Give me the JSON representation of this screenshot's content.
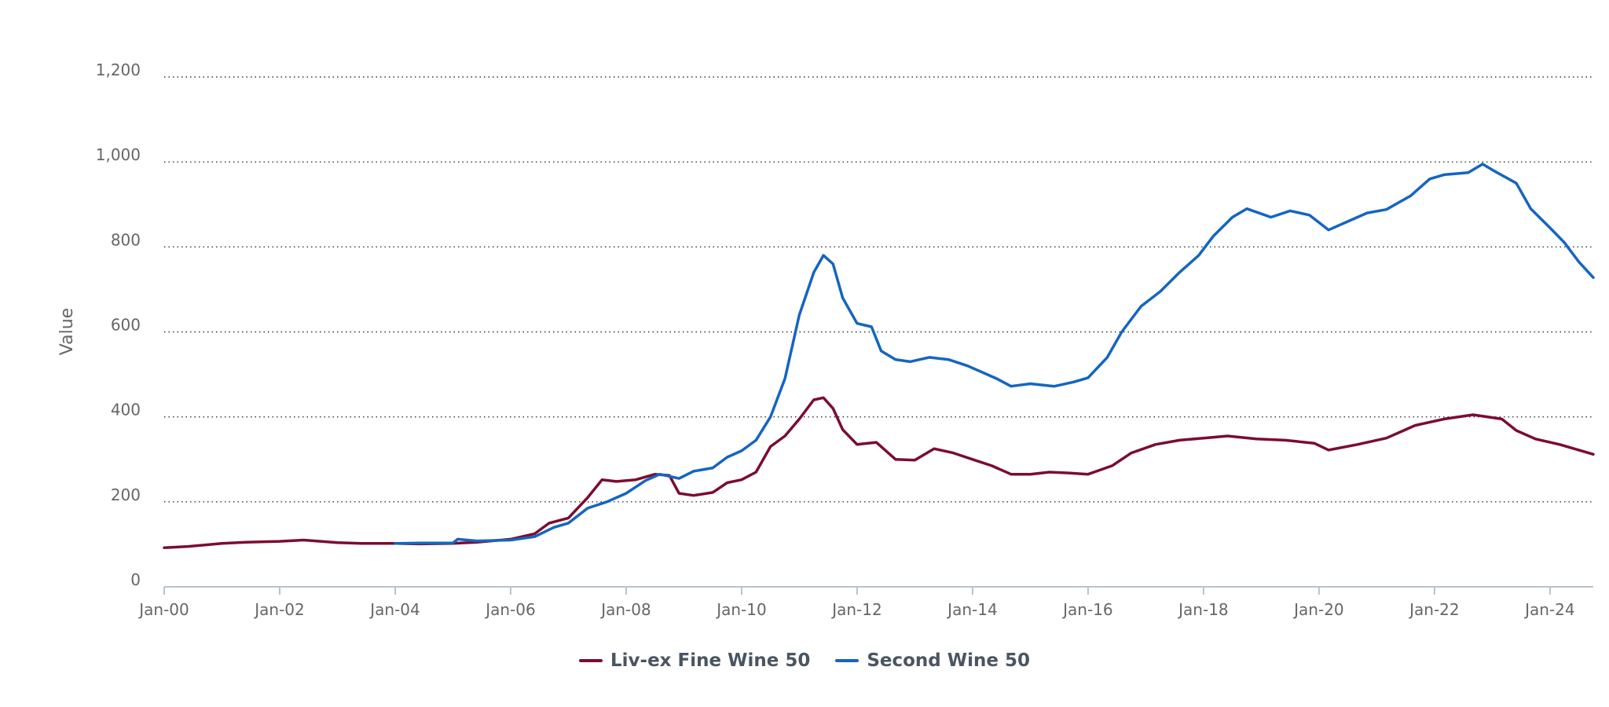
{
  "chart_data": {
    "type": "line",
    "ylabel": "Value",
    "ylim": [
      0,
      1200
    ],
    "yticks": [
      "0",
      "200",
      "400",
      "600",
      "800",
      "1,000",
      "1,200"
    ],
    "xlim": [
      "2000-01",
      "2024-10"
    ],
    "xticks": [
      "Jan-00",
      "Jan-02",
      "Jan-04",
      "Jan-06",
      "Jan-08",
      "Jan-10",
      "Jan-12",
      "Jan-14",
      "Jan-16",
      "Jan-18",
      "Jan-20",
      "Jan-22",
      "Jan-24"
    ],
    "grid": "horizontal-dotted",
    "legend_position": "bottom-center",
    "series": [
      {
        "name": "Liv-ex Fine Wine 50",
        "color": "#7b0c32",
        "points": [
          [
            "2000-01",
            92
          ],
          [
            "2000-06",
            95
          ],
          [
            "2001-01",
            102
          ],
          [
            "2001-06",
            105
          ],
          [
            "2002-01",
            107
          ],
          [
            "2002-06",
            110
          ],
          [
            "2003-01",
            104
          ],
          [
            "2003-06",
            102
          ],
          [
            "2004-01",
            102
          ],
          [
            "2004-06",
            101
          ],
          [
            "2005-01",
            102
          ],
          [
            "2005-06",
            105
          ],
          [
            "2006-01",
            112
          ],
          [
            "2006-06",
            125
          ],
          [
            "2006-09",
            150
          ],
          [
            "2007-01",
            162
          ],
          [
            "2007-05",
            210
          ],
          [
            "2007-08",
            252
          ],
          [
            "2007-11",
            248
          ],
          [
            "2008-03",
            252
          ],
          [
            "2008-07",
            265
          ],
          [
            "2008-10",
            262
          ],
          [
            "2008-12",
            220
          ],
          [
            "2009-03",
            215
          ],
          [
            "2009-07",
            222
          ],
          [
            "2009-10",
            245
          ],
          [
            "2010-01",
            252
          ],
          [
            "2010-04",
            270
          ],
          [
            "2010-07",
            330
          ],
          [
            "2010-10",
            355
          ],
          [
            "2011-01",
            395
          ],
          [
            "2011-04",
            440
          ],
          [
            "2011-06",
            445
          ],
          [
            "2011-08",
            420
          ],
          [
            "2011-10",
            370
          ],
          [
            "2012-01",
            335
          ],
          [
            "2012-05",
            340
          ],
          [
            "2012-09",
            300
          ],
          [
            "2013-01",
            298
          ],
          [
            "2013-05",
            325
          ],
          [
            "2013-09",
            315
          ],
          [
            "2014-01",
            300
          ],
          [
            "2014-05",
            285
          ],
          [
            "2014-09",
            265
          ],
          [
            "2015-01",
            265
          ],
          [
            "2015-05",
            270
          ],
          [
            "2015-09",
            268
          ],
          [
            "2016-01",
            265
          ],
          [
            "2016-06",
            285
          ],
          [
            "2016-10",
            315
          ],
          [
            "2017-03",
            335
          ],
          [
            "2017-08",
            345
          ],
          [
            "2018-01",
            350
          ],
          [
            "2018-06",
            355
          ],
          [
            "2018-12",
            348
          ],
          [
            "2019-06",
            345
          ],
          [
            "2019-12",
            338
          ],
          [
            "2020-03",
            322
          ],
          [
            "2020-09",
            335
          ],
          [
            "2021-03",
            350
          ],
          [
            "2021-09",
            380
          ],
          [
            "2022-03",
            395
          ],
          [
            "2022-09",
            405
          ],
          [
            "2023-03",
            395
          ],
          [
            "2023-06",
            368
          ],
          [
            "2023-10",
            348
          ],
          [
            "2024-03",
            335
          ],
          [
            "2024-07",
            322
          ],
          [
            "2024-10",
            312
          ]
        ]
      },
      {
        "name": "Second Wine 50",
        "color": "#1565c0",
        "points": [
          [
            "2004-01",
            102
          ],
          [
            "2004-06",
            103
          ],
          [
            "2005-01",
            103
          ],
          [
            "2005-02",
            112
          ],
          [
            "2005-06",
            108
          ],
          [
            "2006-01",
            110
          ],
          [
            "2006-06",
            118
          ],
          [
            "2006-10",
            140
          ],
          [
            "2007-01",
            150
          ],
          [
            "2007-05",
            185
          ],
          [
            "2007-09",
            200
          ],
          [
            "2008-01",
            220
          ],
          [
            "2008-05",
            250
          ],
          [
            "2008-08",
            265
          ],
          [
            "2008-12",
            255
          ],
          [
            "2009-03",
            272
          ],
          [
            "2009-07",
            280
          ],
          [
            "2009-10",
            305
          ],
          [
            "2010-01",
            320
          ],
          [
            "2010-04",
            345
          ],
          [
            "2010-07",
            400
          ],
          [
            "2010-10",
            490
          ],
          [
            "2011-01",
            640
          ],
          [
            "2011-04",
            740
          ],
          [
            "2011-06",
            780
          ],
          [
            "2011-08",
            760
          ],
          [
            "2011-10",
            680
          ],
          [
            "2012-01",
            620
          ],
          [
            "2012-04",
            612
          ],
          [
            "2012-06",
            555
          ],
          [
            "2012-09",
            535
          ],
          [
            "2012-12",
            530
          ],
          [
            "2013-04",
            540
          ],
          [
            "2013-08",
            535
          ],
          [
            "2013-12",
            520
          ],
          [
            "2014-06",
            490
          ],
          [
            "2014-09",
            472
          ],
          [
            "2015-01",
            478
          ],
          [
            "2015-06",
            472
          ],
          [
            "2015-10",
            482
          ],
          [
            "2016-01",
            492
          ],
          [
            "2016-05",
            540
          ],
          [
            "2016-08",
            600
          ],
          [
            "2016-12",
            660
          ],
          [
            "2017-04",
            695
          ],
          [
            "2017-08",
            740
          ],
          [
            "2017-12",
            780
          ],
          [
            "2018-03",
            825
          ],
          [
            "2018-07",
            870
          ],
          [
            "2018-10",
            890
          ],
          [
            "2019-03",
            870
          ],
          [
            "2019-07",
            885
          ],
          [
            "2019-11",
            875
          ],
          [
            "2020-03",
            840
          ],
          [
            "2020-07",
            860
          ],
          [
            "2020-11",
            880
          ],
          [
            "2021-03",
            888
          ],
          [
            "2021-08",
            920
          ],
          [
            "2021-12",
            960
          ],
          [
            "2022-03",
            970
          ],
          [
            "2022-08",
            975
          ],
          [
            "2022-11",
            995
          ],
          [
            "2023-02",
            975
          ],
          [
            "2023-06",
            950
          ],
          [
            "2023-09",
            890
          ],
          [
            "2024-01",
            845
          ],
          [
            "2024-04",
            810
          ],
          [
            "2024-07",
            765
          ],
          [
            "2024-10",
            728
          ]
        ]
      }
    ]
  }
}
